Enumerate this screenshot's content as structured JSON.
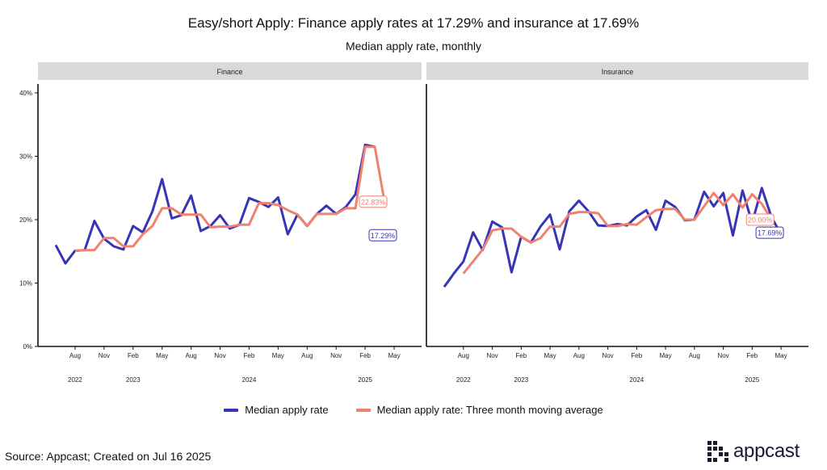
{
  "title": "Easy/short Apply: Finance apply rates at 17.29% and insurance at 17.69%",
  "subtitle": "Median apply rate, monthly",
  "source": "Source: Appcast; Created on Jul 16 2025",
  "logo_text": "appcast",
  "colors": {
    "median": "#3535b5",
    "moving_avg": "#f08070",
    "strip": "#d9d9d9"
  },
  "legend": {
    "median": "Median apply rate",
    "moving_avg": "Median apply rate: Three month moving average"
  },
  "chart_data": {
    "type": "line",
    "months": [
      "2022-06",
      "2022-07",
      "2022-08",
      "2022-09",
      "2022-10",
      "2022-11",
      "2022-12",
      "2023-01",
      "2023-02",
      "2023-03",
      "2023-04",
      "2023-05",
      "2023-06",
      "2023-07",
      "2023-08",
      "2023-09",
      "2023-10",
      "2023-11",
      "2023-12",
      "2024-01",
      "2024-02",
      "2024-03",
      "2024-04",
      "2024-05",
      "2024-06",
      "2024-07",
      "2024-08",
      "2024-09",
      "2024-10",
      "2024-11",
      "2024-12",
      "2025-01",
      "2025-02",
      "2025-03",
      "2025-04",
      "2025-05",
      "2025-06"
    ],
    "x_ticks": [
      "Aug",
      "Nov",
      "Feb",
      "May",
      "Aug",
      "Nov",
      "Feb",
      "May",
      "Aug",
      "Nov",
      "Feb",
      "May"
    ],
    "x_tick_months": [
      "2022-08",
      "2022-11",
      "2023-02",
      "2023-05",
      "2023-08",
      "2023-11",
      "2024-02",
      "2024-05",
      "2024-08",
      "2024-11",
      "2025-02",
      "2025-05"
    ],
    "year_labels": [
      "2022",
      "2023",
      "2024",
      "2025"
    ],
    "year_label_months": [
      "2022-08",
      "2023-02",
      "2024-02",
      "2025-02"
    ],
    "y_ticks": [
      "0%",
      "10%",
      "20%",
      "30%",
      "40%"
    ],
    "ylim": [
      0,
      40
    ],
    "series_names": [
      "Median apply rate",
      "Median apply rate: Three month moving average"
    ],
    "panels": [
      {
        "name": "Finance",
        "median": [
          16.0,
          13.1,
          15.1,
          15.2,
          19.8,
          17.0,
          15.8,
          15.3,
          19.0,
          18.0,
          21.3,
          26.4,
          20.2,
          20.7,
          23.8,
          18.2,
          19.0,
          20.7,
          18.6,
          19.2,
          23.4,
          22.8,
          22.0,
          23.5,
          17.7,
          20.8,
          19.0,
          20.9,
          22.2,
          20.9,
          22.0,
          24.0,
          31.8,
          31.5,
          null,
          17.29,
          null
        ],
        "moving_avg": [
          null,
          null,
          15.1,
          15.2,
          15.2,
          17.1,
          17.1,
          15.8,
          15.8,
          17.7,
          19.0,
          21.8,
          21.8,
          20.8,
          20.8,
          20.8,
          18.8,
          18.9,
          18.9,
          19.2,
          19.2,
          22.6,
          22.6,
          22.3,
          21.5,
          20.8,
          19.0,
          20.9,
          20.9,
          20.9,
          21.8,
          21.8,
          31.5,
          31.5,
          22.83,
          null,
          null
        ],
        "end_labels": {
          "moving_avg": "22.83%",
          "median": "17.29%"
        }
      },
      {
        "name": "Insurance",
        "median": [
          9.4,
          11.5,
          13.4,
          18.0,
          15.2,
          19.7,
          18.8,
          11.7,
          17.3,
          16.4,
          18.9,
          20.8,
          15.3,
          21.3,
          23.0,
          21.3,
          19.1,
          19.0,
          19.3,
          19.1,
          20.5,
          21.5,
          18.4,
          23.0,
          22.0,
          19.9,
          20.0,
          24.4,
          22.1,
          24.2,
          17.5,
          24.6,
          19.5,
          25.0,
          20.4,
          17.69,
          null
        ],
        "moving_avg": [
          null,
          null,
          11.5,
          13.4,
          15.3,
          18.3,
          18.6,
          18.6,
          17.3,
          16.4,
          17.1,
          18.9,
          18.9,
          20.9,
          21.2,
          21.2,
          21.0,
          19.0,
          19.0,
          19.3,
          19.2,
          20.4,
          21.5,
          21.7,
          21.7,
          20.0,
          20.0,
          22.1,
          24.2,
          22.3,
          24.0,
          21.9,
          24.0,
          22.5,
          20.0,
          null,
          null
        ],
        "end_labels": {
          "moving_avg": "20.00%",
          "median": "17.69%"
        }
      }
    ]
  }
}
